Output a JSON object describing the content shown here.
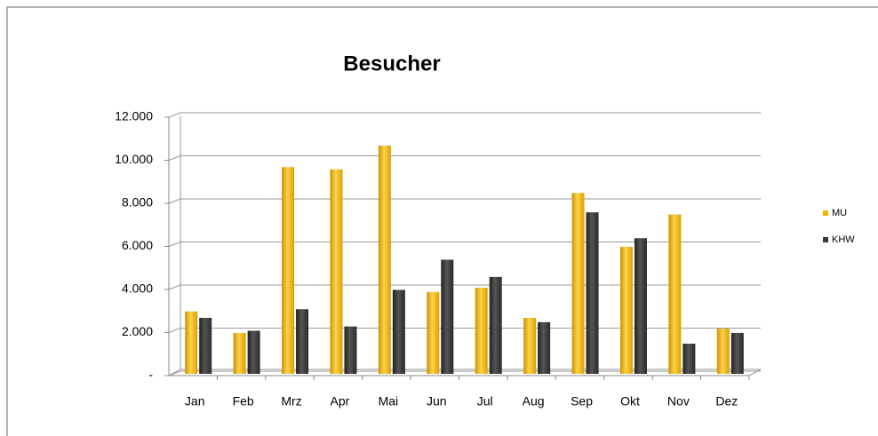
{
  "chart_data": {
    "type": "bar",
    "title": "Besucher",
    "categories": [
      "Jan",
      "Feb",
      "Mrz",
      "Apr",
      "Mai",
      "Jun",
      "Jul",
      "Aug",
      "Sep",
      "Okt",
      "Nov",
      "Dez"
    ],
    "series": [
      {
        "name": "MU",
        "color": "#f2b600",
        "values": [
          2900,
          1900,
          9600,
          9500,
          10600,
          3800,
          4000,
          2600,
          8400,
          5900,
          7400,
          2100
        ]
      },
      {
        "name": "KHW",
        "color": "#3a3a3a",
        "values": [
          2600,
          2000,
          3000,
          2200,
          3900,
          5300,
          4500,
          2400,
          7500,
          6300,
          1400,
          1900
        ]
      }
    ],
    "ylim": [
      0,
      12000
    ],
    "yticks": [
      {
        "value": 0,
        "label": "-"
      },
      {
        "value": 2000,
        "label": "2.000"
      },
      {
        "value": 4000,
        "label": "4.000"
      },
      {
        "value": 6000,
        "label": "6.000"
      },
      {
        "value": 8000,
        "label": "8.000"
      },
      {
        "value": 10000,
        "label": "10.000"
      },
      {
        "value": 12000,
        "label": "12.000"
      }
    ],
    "grid": true,
    "legend": "right"
  }
}
